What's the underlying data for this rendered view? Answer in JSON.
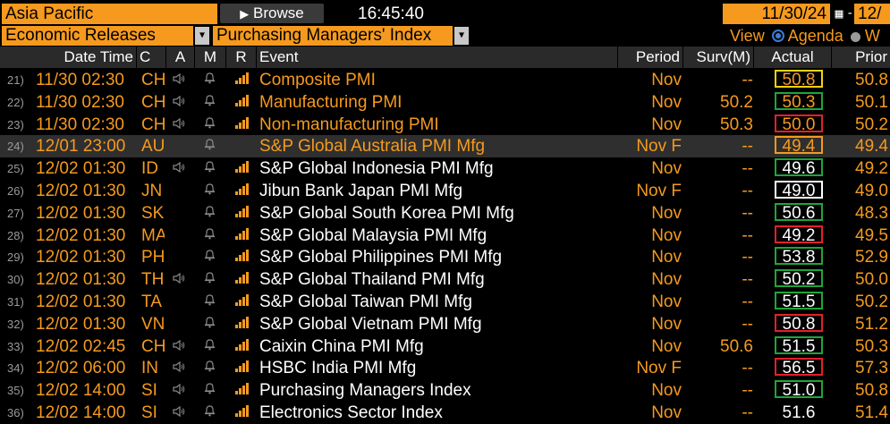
{
  "toolbar": {
    "region": "Asia Pacific",
    "browse_label": "Browse",
    "browse_icon": "play-circle-icon",
    "clock": "16:45:40",
    "date_start": "11/30/24",
    "date_end": "12/",
    "category": "Economic Releases",
    "indicator": "Purchasing Managers' Index",
    "view_label": "View",
    "view_agenda": "Agenda",
    "view_other": "W"
  },
  "columns": {
    "datetime": "Date Time",
    "country": "C",
    "audio": "A",
    "memo": "M",
    "relevance": "R",
    "event": "Event",
    "period": "Period",
    "survey": "Surv(M)",
    "actual": "Actual",
    "prior": "Prior"
  },
  "colors": {
    "orange": "#f59a1e",
    "green": "#1fa53a",
    "red": "#e3202a",
    "yellow": "#f2d20f",
    "white": "#ffffff"
  },
  "rows": [
    {
      "num": "21)",
      "datetime": "11/30 02:30",
      "country": "CH",
      "audio": true,
      "relevance": 4,
      "event": "Composite PMI",
      "event_color": "orange",
      "period": "Nov",
      "survey": "--",
      "actual": "50.8",
      "actual_border": "yellow",
      "actual_color": "orange",
      "prior": "50.8"
    },
    {
      "num": "22)",
      "datetime": "11/30 02:30",
      "country": "CH",
      "audio": true,
      "relevance": 4,
      "event": "Manufacturing PMI",
      "event_color": "orange",
      "period": "Nov",
      "survey": "50.2",
      "actual": "50.3",
      "actual_border": "green",
      "actual_color": "orange",
      "prior": "50.1"
    },
    {
      "num": "23)",
      "datetime": "11/30 02:30",
      "country": "CH",
      "audio": true,
      "relevance": 4,
      "event": "Non-manufacturing PMI",
      "event_color": "orange",
      "period": "Nov",
      "survey": "50.3",
      "actual": "50.0",
      "actual_border": "red",
      "actual_color": "orange",
      "prior": "50.2"
    },
    {
      "num": "24)",
      "datetime": "12/01 23:00",
      "country": "AU",
      "audio": false,
      "relevance": 0,
      "event": "S&P Global Australia PMI Mfg",
      "event_color": "orange",
      "period": "Nov F",
      "survey": "--",
      "actual": "49.4",
      "actual_border": "orange",
      "actual_color": "orange",
      "prior": "49.4",
      "selected": true
    },
    {
      "num": "25)",
      "datetime": "12/02 01:30",
      "country": "ID",
      "audio": true,
      "relevance": 4,
      "event": "S&P Global Indonesia PMI Mfg",
      "event_color": "white",
      "period": "Nov",
      "survey": "--",
      "actual": "49.6",
      "actual_border": "green",
      "actual_color": "white",
      "prior": "49.2"
    },
    {
      "num": "26)",
      "datetime": "12/02 01:30",
      "country": "JN",
      "audio": false,
      "relevance": 4,
      "event": "Jibun Bank Japan PMI Mfg",
      "event_color": "white",
      "period": "Nov F",
      "survey": "--",
      "actual": "49.0",
      "actual_border": "white",
      "actual_color": "white",
      "prior": "49.0"
    },
    {
      "num": "27)",
      "datetime": "12/02 01:30",
      "country": "SK",
      "audio": false,
      "relevance": 4,
      "event": "S&P Global South Korea PMI Mfg",
      "event_color": "white",
      "period": "Nov",
      "survey": "--",
      "actual": "50.6",
      "actual_border": "green",
      "actual_color": "white",
      "prior": "48.3"
    },
    {
      "num": "28)",
      "datetime": "12/02 01:30",
      "country": "MA",
      "audio": false,
      "relevance": 4,
      "event": "S&P Global Malaysia PMI Mfg",
      "event_color": "white",
      "period": "Nov",
      "survey": "--",
      "actual": "49.2",
      "actual_border": "red",
      "actual_color": "white",
      "prior": "49.5"
    },
    {
      "num": "29)",
      "datetime": "12/02 01:30",
      "country": "PH",
      "audio": false,
      "relevance": 4,
      "event": "S&P Global Philippines PMI Mfg",
      "event_color": "white",
      "period": "Nov",
      "survey": "--",
      "actual": "53.8",
      "actual_border": "green",
      "actual_color": "white",
      "prior": "52.9"
    },
    {
      "num": "30)",
      "datetime": "12/02 01:30",
      "country": "TH",
      "audio": true,
      "relevance": 4,
      "event": "S&P Global Thailand PMI Mfg",
      "event_color": "white",
      "period": "Nov",
      "survey": "--",
      "actual": "50.2",
      "actual_border": "green",
      "actual_color": "white",
      "prior": "50.0"
    },
    {
      "num": "31)",
      "datetime": "12/02 01:30",
      "country": "TA",
      "audio": false,
      "relevance": 4,
      "event": "S&P Global Taiwan PMI Mfg",
      "event_color": "white",
      "period": "Nov",
      "survey": "--",
      "actual": "51.5",
      "actual_border": "green",
      "actual_color": "white",
      "prior": "50.2"
    },
    {
      "num": "32)",
      "datetime": "12/02 01:30",
      "country": "VN",
      "audio": false,
      "relevance": 4,
      "event": "S&P Global Vietnam PMI Mfg",
      "event_color": "white",
      "period": "Nov",
      "survey": "--",
      "actual": "50.8",
      "actual_border": "red",
      "actual_color": "white",
      "prior": "51.2"
    },
    {
      "num": "33)",
      "datetime": "12/02 02:45",
      "country": "CH",
      "audio": true,
      "relevance": 4,
      "event": "Caixin China PMI Mfg",
      "event_color": "white",
      "period": "Nov",
      "survey": "50.6",
      "actual": "51.5",
      "actual_border": "green",
      "actual_color": "white",
      "prior": "50.3"
    },
    {
      "num": "34)",
      "datetime": "12/02 06:00",
      "country": "IN",
      "audio": true,
      "relevance": 4,
      "event": "HSBC India PMI Mfg",
      "event_color": "white",
      "period": "Nov F",
      "survey": "--",
      "actual": "56.5",
      "actual_border": "red",
      "actual_color": "white",
      "prior": "57.3"
    },
    {
      "num": "35)",
      "datetime": "12/02 14:00",
      "country": "SI",
      "audio": true,
      "relevance": 4,
      "event": "Purchasing Managers Index",
      "event_color": "white",
      "period": "Nov",
      "survey": "--",
      "actual": "51.0",
      "actual_border": "green",
      "actual_color": "white",
      "prior": "50.8"
    },
    {
      "num": "36)",
      "datetime": "12/02 14:00",
      "country": "SI",
      "audio": true,
      "relevance": 4,
      "event": "Electronics Sector Index",
      "event_color": "white",
      "period": "Nov",
      "survey": "--",
      "actual": "51.6",
      "actual_border": "none",
      "actual_color": "white",
      "prior": "51.4"
    }
  ]
}
